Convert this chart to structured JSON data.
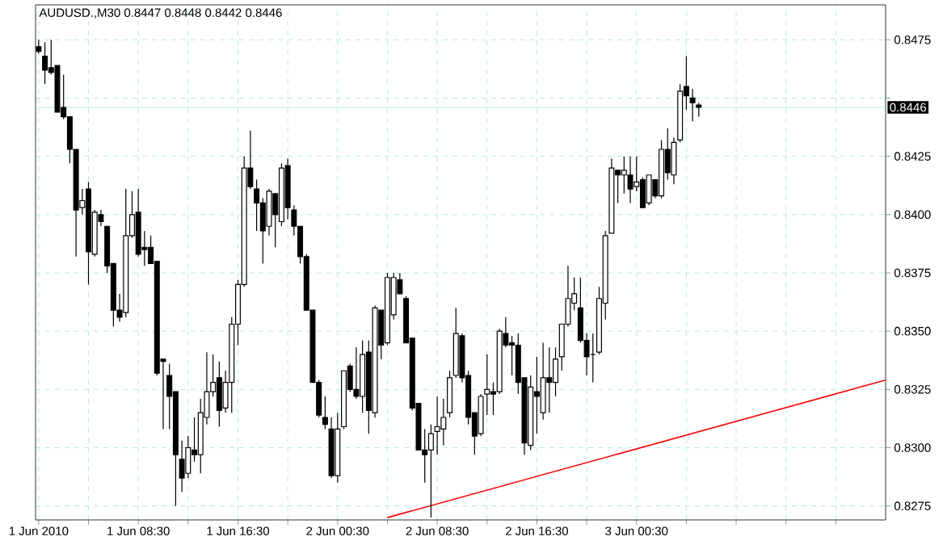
{
  "chart_data": {
    "type": "candlestick",
    "title": "AUDUSD.,M30 0.8447 0.8448 0.8442 0.8446",
    "x": [
      "2010-06-01T00:30",
      "2010-06-01T01:00",
      "2010-06-01T01:30",
      "2010-06-01T02:00",
      "2010-06-01T02:30",
      "2010-06-01T03:00",
      "2010-06-01T03:30",
      "2010-06-01T04:00",
      "2010-06-01T04:30",
      "2010-06-01T05:00",
      "2010-06-01T05:30",
      "2010-06-01T06:00",
      "2010-06-01T06:30",
      "2010-06-01T07:00",
      "2010-06-01T07:30",
      "2010-06-01T08:00",
      "2010-06-01T08:30",
      "2010-06-01T09:00",
      "2010-06-01T09:30",
      "2010-06-01T10:00",
      "2010-06-01T10:30",
      "2010-06-01T11:00",
      "2010-06-01T11:30",
      "2010-06-01T12:00",
      "2010-06-01T12:30",
      "2010-06-01T13:00",
      "2010-06-01T13:30",
      "2010-06-01T14:00",
      "2010-06-01T14:30",
      "2010-06-01T15:00",
      "2010-06-01T15:30",
      "2010-06-01T16:00",
      "2010-06-01T16:30",
      "2010-06-01T17:00",
      "2010-06-01T17:30",
      "2010-06-01T18:00",
      "2010-06-01T18:30",
      "2010-06-01T19:00",
      "2010-06-01T19:30",
      "2010-06-01T20:00",
      "2010-06-01T20:30",
      "2010-06-01T21:00",
      "2010-06-01T21:30",
      "2010-06-01T22:00",
      "2010-06-01T22:30",
      "2010-06-01T23:00",
      "2010-06-01T23:30",
      "2010-06-02T00:00",
      "2010-06-02T00:30",
      "2010-06-02T01:00",
      "2010-06-02T01:30",
      "2010-06-02T02:00",
      "2010-06-02T02:30",
      "2010-06-02T03:00",
      "2010-06-02T03:30",
      "2010-06-02T04:00",
      "2010-06-02T04:30",
      "2010-06-02T05:00",
      "2010-06-02T05:30",
      "2010-06-02T06:00",
      "2010-06-02T06:30",
      "2010-06-02T07:00",
      "2010-06-02T07:30",
      "2010-06-02T08:00",
      "2010-06-02T08:30",
      "2010-06-02T09:00",
      "2010-06-02T09:30",
      "2010-06-02T10:00",
      "2010-06-02T10:30",
      "2010-06-02T11:00",
      "2010-06-02T11:30",
      "2010-06-02T12:00",
      "2010-06-02T12:30",
      "2010-06-02T13:00",
      "2010-06-02T13:30",
      "2010-06-02T14:00",
      "2010-06-02T14:30",
      "2010-06-02T15:00",
      "2010-06-02T15:30",
      "2010-06-02T16:00",
      "2010-06-02T16:30",
      "2010-06-02T17:00",
      "2010-06-02T17:30",
      "2010-06-02T18:00",
      "2010-06-02T18:30",
      "2010-06-02T19:00",
      "2010-06-02T19:30",
      "2010-06-02T20:00",
      "2010-06-02T20:30",
      "2010-06-02T21:00",
      "2010-06-02T21:30",
      "2010-06-02T22:00",
      "2010-06-02T22:30",
      "2010-06-02T23:00",
      "2010-06-02T23:30",
      "2010-06-03T00:00",
      "2010-06-03T00:30",
      "2010-06-03T01:00",
      "2010-06-03T01:30",
      "2010-06-03T02:00",
      "2010-06-03T02:30",
      "2010-06-03T03:00",
      "2010-06-03T03:30",
      "2010-06-03T04:00",
      "2010-06-03T04:30",
      "2010-06-03T05:00",
      "2010-06-03T05:30"
    ],
    "ohlc": [
      [
        0.8472,
        0.8475,
        0.8469,
        0.847
      ],
      [
        0.8468,
        0.8474,
        0.8456,
        0.8462
      ],
      [
        0.8463,
        0.8475,
        0.846,
        0.8461
      ],
      [
        0.8464,
        0.8464,
        0.8444,
        0.8444
      ],
      [
        0.8446,
        0.846,
        0.8441,
        0.8442
      ],
      [
        0.8442,
        0.8442,
        0.8422,
        0.8428
      ],
      [
        0.8428,
        0.8428,
        0.8382,
        0.8402
      ],
      [
        0.8403,
        0.8411,
        0.84,
        0.8406
      ],
      [
        0.8411,
        0.8414,
        0.837,
        0.8384
      ],
      [
        0.8383,
        0.8402,
        0.8382,
        0.8401
      ],
      [
        0.84,
        0.8402,
        0.8395,
        0.8397
      ],
      [
        0.8395,
        0.8395,
        0.8375,
        0.8378
      ],
      [
        0.8379,
        0.8379,
        0.8352,
        0.8359
      ],
      [
        0.8359,
        0.8366,
        0.8354,
        0.8356
      ],
      [
        0.8358,
        0.8411,
        0.8356,
        0.8391
      ],
      [
        0.8391,
        0.841,
        0.839,
        0.84
      ],
      [
        0.8401,
        0.8411,
        0.8382,
        0.8383
      ],
      [
        0.8386,
        0.8393,
        0.8378,
        0.8385
      ],
      [
        0.8386,
        0.8391,
        0.8379,
        0.8379
      ],
      [
        0.838,
        0.838,
        0.8331,
        0.8332
      ],
      [
        0.8338,
        0.8338,
        0.8308,
        0.8337
      ],
      [
        0.8331,
        0.8336,
        0.8308,
        0.8322
      ],
      [
        0.8324,
        0.8324,
        0.8275,
        0.8297
      ],
      [
        0.8295,
        0.8303,
        0.8281,
        0.8287
      ],
      [
        0.8289,
        0.8305,
        0.8287,
        0.83
      ],
      [
        0.8299,
        0.8313,
        0.8294,
        0.8297
      ],
      [
        0.8297,
        0.8321,
        0.8289,
        0.8315
      ],
      [
        0.8313,
        0.8341,
        0.831,
        0.8324
      ],
      [
        0.8324,
        0.834,
        0.8322,
        0.8328
      ],
      [
        0.833,
        0.8337,
        0.8309,
        0.8316
      ],
      [
        0.8317,
        0.8333,
        0.8315,
        0.8328
      ],
      [
        0.8328,
        0.8356,
        0.8315,
        0.8353
      ],
      [
        0.8353,
        0.8372,
        0.8344,
        0.837
      ],
      [
        0.837,
        0.8425,
        0.8369,
        0.842
      ],
      [
        0.842,
        0.8436,
        0.8411,
        0.8412
      ],
      [
        0.8411,
        0.8415,
        0.8393,
        0.8405
      ],
      [
        0.8405,
        0.8407,
        0.8379,
        0.8393
      ],
      [
        0.8395,
        0.8411,
        0.8391,
        0.841
      ],
      [
        0.8409,
        0.8409,
        0.8386,
        0.84
      ],
      [
        0.8397,
        0.8422,
        0.8395,
        0.842
      ],
      [
        0.8421,
        0.8424,
        0.8398,
        0.8403
      ],
      [
        0.8402,
        0.8404,
        0.8391,
        0.8395
      ],
      [
        0.8395,
        0.8395,
        0.8379,
        0.8382
      ],
      [
        0.8382,
        0.8383,
        0.8359,
        0.8359
      ],
      [
        0.8359,
        0.8359,
        0.8328,
        0.8328
      ],
      [
        0.8328,
        0.8329,
        0.8313,
        0.8314
      ],
      [
        0.8313,
        0.8322,
        0.8308,
        0.831
      ],
      [
        0.8308,
        0.8313,
        0.8287,
        0.8288
      ],
      [
        0.8288,
        0.8315,
        0.8285,
        0.8308
      ],
      [
        0.8309,
        0.8333,
        0.8308,
        0.8333
      ],
      [
        0.8335,
        0.8336,
        0.8324,
        0.8325
      ],
      [
        0.8325,
        0.8343,
        0.8321,
        0.8322
      ],
      [
        0.8322,
        0.8346,
        0.8315,
        0.834
      ],
      [
        0.8341,
        0.8346,
        0.8306,
        0.8316
      ],
      [
        0.8315,
        0.8361,
        0.8313,
        0.836
      ],
      [
        0.8359,
        0.8359,
        0.8338,
        0.8344
      ],
      [
        0.8345,
        0.8375,
        0.8344,
        0.8373
      ],
      [
        0.8357,
        0.8375,
        0.8355,
        0.8373
      ],
      [
        0.8372,
        0.8375,
        0.8366,
        0.8366
      ],
      [
        0.8364,
        0.8365,
        0.8345,
        0.8345
      ],
      [
        0.8347,
        0.8347,
        0.8316,
        0.8317
      ],
      [
        0.8319,
        0.8319,
        0.8299,
        0.8299
      ],
      [
        0.8299,
        0.8308,
        0.8285,
        0.8297
      ],
      [
        0.8299,
        0.831,
        0.827,
        0.8306
      ],
      [
        0.8307,
        0.8322,
        0.8297,
        0.8309
      ],
      [
        0.8308,
        0.8321,
        0.8301,
        0.8313
      ],
      [
        0.8315,
        0.8333,
        0.8313,
        0.833
      ],
      [
        0.8331,
        0.836,
        0.833,
        0.8349
      ],
      [
        0.8348,
        0.8349,
        0.8328,
        0.833
      ],
      [
        0.8331,
        0.8333,
        0.831,
        0.8313
      ],
      [
        0.8315,
        0.8315,
        0.8297,
        0.8305
      ],
      [
        0.8306,
        0.8323,
        0.8305,
        0.8322
      ],
      [
        0.8323,
        0.834,
        0.8314,
        0.8325
      ],
      [
        0.8324,
        0.8328,
        0.8314,
        0.8323
      ],
      [
        0.8324,
        0.8351,
        0.8323,
        0.835
      ],
      [
        0.8349,
        0.8356,
        0.8343,
        0.8344
      ],
      [
        0.8345,
        0.8348,
        0.8331,
        0.8344
      ],
      [
        0.8344,
        0.8349,
        0.8323,
        0.8328
      ],
      [
        0.833,
        0.833,
        0.8297,
        0.8302
      ],
      [
        0.8301,
        0.8331,
        0.8299,
        0.8326
      ],
      [
        0.8324,
        0.8339,
        0.8306,
        0.8322
      ],
      [
        0.8315,
        0.8345,
        0.8312,
        0.833
      ],
      [
        0.833,
        0.8343,
        0.8315,
        0.8328
      ],
      [
        0.8328,
        0.8343,
        0.8322,
        0.8338
      ],
      [
        0.8339,
        0.8353,
        0.8333,
        0.8353
      ],
      [
        0.8353,
        0.8378,
        0.8352,
        0.8364
      ],
      [
        0.8362,
        0.8373,
        0.8359,
        0.8366
      ],
      [
        0.836,
        0.8373,
        0.8345,
        0.8346
      ],
      [
        0.8346,
        0.8349,
        0.8331,
        0.8339
      ],
      [
        0.834,
        0.8349,
        0.8328,
        0.834
      ],
      [
        0.8341,
        0.8369,
        0.834,
        0.8364
      ],
      [
        0.8362,
        0.8393,
        0.8355,
        0.8391
      ],
      [
        0.8392,
        0.8424,
        0.8392,
        0.842
      ],
      [
        0.8419,
        0.8419,
        0.8405,
        0.8417
      ],
      [
        0.8417,
        0.8425,
        0.8409,
        0.8419
      ],
      [
        0.8417,
        0.8425,
        0.8405,
        0.8411
      ],
      [
        0.8412,
        0.8425,
        0.841,
        0.8414
      ],
      [
        0.8415,
        0.8416,
        0.8403,
        0.8403
      ],
      [
        0.8405,
        0.8417,
        0.8404,
        0.8417
      ],
      [
        0.8415,
        0.8415,
        0.8407,
        0.8408
      ],
      [
        0.8408,
        0.8432,
        0.8407,
        0.8428
      ],
      [
        0.8428,
        0.8437,
        0.8415,
        0.8418
      ],
      [
        0.8417,
        0.8433,
        0.8413,
        0.8431
      ],
      [
        0.8432,
        0.8456,
        0.8431,
        0.8453
      ],
      [
        0.8455,
        0.8468,
        0.8445,
        0.8451
      ],
      [
        0.845,
        0.8454,
        0.844,
        0.8448
      ],
      [
        0.8447,
        0.8448,
        0.8442,
        0.8446
      ]
    ],
    "series": [
      {
        "type": "line",
        "x": [
          "2010-06-02T04:30",
          "2010-06-03T20:30"
        ],
        "values": [
          0.827,
          0.8329
        ],
        "color": "#ff0000"
      }
    ],
    "xlim": [
      "2010-06-01T00:15",
      "2010-06-03T20:30"
    ],
    "xticks": [
      {
        "value": "2010-06-01T00:30",
        "label": "1 Jun 2010"
      },
      {
        "value": "2010-06-01T04:30",
        "label": null
      },
      {
        "value": "2010-06-01T08:30",
        "label": "1 Jun 08:30"
      },
      {
        "value": "2010-06-01T12:30",
        "label": null
      },
      {
        "value": "2010-06-01T16:30",
        "label": "1 Jun 16:30"
      },
      {
        "value": "2010-06-01T20:30",
        "label": null
      },
      {
        "value": "2010-06-02T00:30",
        "label": "2 Jun 00:30"
      },
      {
        "value": "2010-06-02T04:30",
        "label": null
      },
      {
        "value": "2010-06-02T08:30",
        "label": "2 Jun 08:30"
      },
      {
        "value": "2010-06-02T12:30",
        "label": null
      },
      {
        "value": "2010-06-02T16:30",
        "label": "2 Jun 16:30"
      },
      {
        "value": "2010-06-02T20:30",
        "label": null
      },
      {
        "value": "2010-06-03T00:30",
        "label": "3 Jun 00:30"
      },
      {
        "value": "2010-06-03T04:30",
        "label": null
      },
      {
        "value": "2010-06-03T08:30",
        "label": null
      },
      {
        "value": "2010-06-03T12:30",
        "label": null
      },
      {
        "value": "2010-06-03T16:30",
        "label": null
      }
    ],
    "ylim": [
      0.8269,
      0.849
    ],
    "yticks": [
      0.8275,
      {
        "value": 0.83,
        "label": "0.8300"
      },
      0.8325,
      {
        "value": 0.835,
        "label": "0.8350"
      },
      0.8375,
      {
        "value": 0.84,
        "label": "0.8400"
      },
      0.8425,
      {
        "value": 0.845,
        "label": null
      },
      0.8475
    ],
    "grid": true,
    "ref_lines": [
      {
        "axis": "y",
        "value": 0.8446,
        "label": "0.8446",
        "color": "#a8e4e4"
      }
    ]
  }
}
